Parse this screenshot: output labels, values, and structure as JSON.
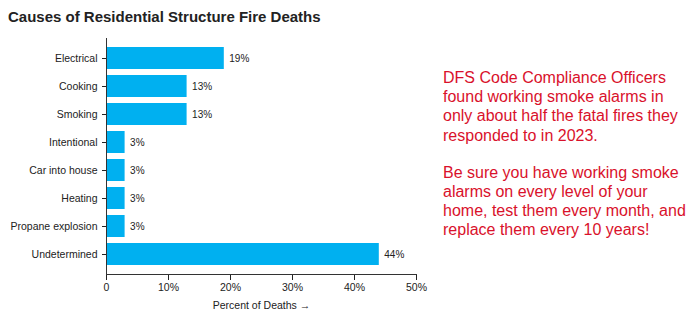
{
  "chart_data": {
    "type": "bar",
    "orientation": "horizontal",
    "title": "Causes of Residential Structure Fire Deaths",
    "x_label": "Percent of Deaths",
    "categories": [
      "Electrical",
      "Cooking",
      "Smoking",
      "Intentional",
      "Car into house",
      "Heating",
      "Propane explosion",
      "Undetermined"
    ],
    "values": [
      19,
      13,
      13,
      3,
      3,
      3,
      3,
      44
    ],
    "value_labels": [
      "19%",
      "13%",
      "13%",
      "3%",
      "3%",
      "3%",
      "3%",
      "44%"
    ],
    "data_labels": true,
    "color": "#00b0f0",
    "xlim": [
      0,
      50
    ],
    "xticks": [
      0,
      {
        "value": 10,
        "label": "10%"
      },
      {
        "value": 20,
        "label": "20%"
      },
      {
        "value": 30,
        "label": "30%"
      },
      {
        "value": 40,
        "label": "40%"
      },
      {
        "value": 50,
        "label": "50%"
      }
    ],
    "grid": false,
    "annotations": [
      "DFS Code Compliance Officers found working smoke alarms in only about half the fatal fires they responded to in 2023.",
      "Be sure you have working smoke alarms on every level of your home, test them every month, and replace them every 10 years!"
    ]
  }
}
